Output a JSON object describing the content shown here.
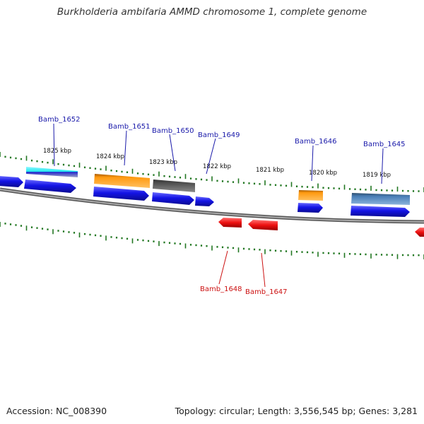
{
  "title": "Burkholderia ambifaria AMMD chromosome 1, complete genome",
  "footer": {
    "accession": "Accession: NC_008390",
    "topology": "Topology: circular; Length: 3,556,545 bp; Genes: 3,281"
  },
  "colors": {
    "forward_label": "#1a1aaa",
    "reverse_label": "#cc1111",
    "backbone": "#8c8c8c",
    "tick": "#227722",
    "cds_blue": "#1414e6",
    "feature_orange": "#ff9a10",
    "feature_gray": "#555555",
    "feature_cyan": "#22e8ee",
    "feature_steel": "#4a7fb8",
    "reverse_red": "#ee1111"
  },
  "ruler_labels": [
    "1825 kbp",
    "1824 kbp",
    "1823 kbp",
    "1822 kbp",
    "1821 kbp",
    "1820 kbp",
    "1819 kbp"
  ],
  "genes_forward": [
    "Bamb_1652",
    "Bamb_1651",
    "Bamb_1650",
    "Bamb_1649",
    "Bamb_1646",
    "Bamb_1645"
  ],
  "genes_reverse": [
    "Bamb_1648",
    "Bamb_1647"
  ]
}
